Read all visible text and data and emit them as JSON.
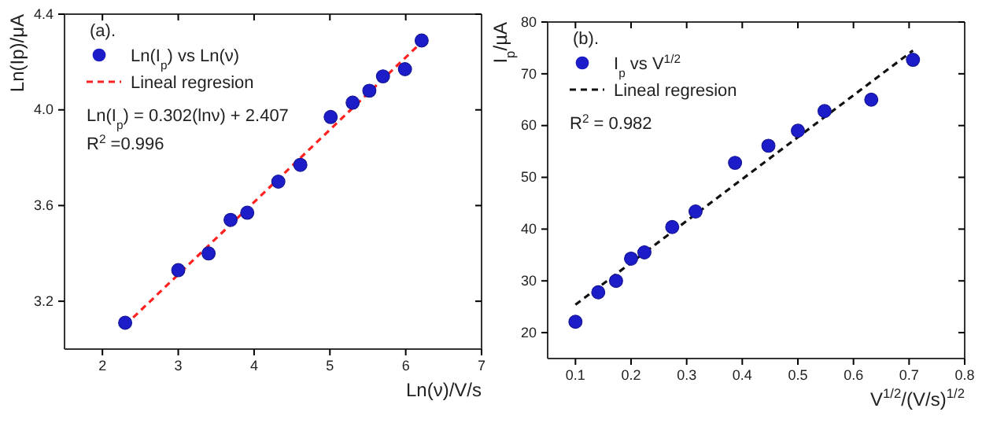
{
  "chart_data": [
    {
      "type": "scatter",
      "xlabel": "Ln(ν)/V/s",
      "ylabel": "Ln(Ip)/μA",
      "xlim": [
        1.5,
        7
      ],
      "ylim": [
        3.0,
        4.4
      ],
      "xticks": [
        2,
        3,
        4,
        5,
        6,
        7
      ],
      "yticks": [
        3.2,
        3.6,
        {
          "value": 4,
          "label": "4.0"
        },
        4.4
      ],
      "legend": "top left",
      "annotations": [
        "(a).",
        "Ln(I$_{p}$) = 0.302(lnν) + 2.407",
        "R$^{2}$ =0.996"
      ],
      "series": [
        {
          "name": "Ln(I$_{p}$) vs Ln(ν)",
          "marker": "circle",
          "color": "#1c1cc8",
          "x": [
            2.3,
            3.0,
            3.4,
            3.69,
            3.91,
            4.32,
            4.61,
            5.01,
            5.3,
            5.52,
            5.7,
            5.99,
            6.21
          ],
          "values": [
            3.11,
            3.33,
            3.4,
            3.54,
            3.57,
            3.7,
            3.77,
            3.97,
            4.03,
            4.08,
            4.14,
            4.17,
            4.29
          ]
        },
        {
          "name": "Lineal regresion",
          "type": "line",
          "marker": "none",
          "line_style": "dashed",
          "color": "#ff2020",
          "x": [
            2.3,
            6.2
          ],
          "values": [
            3.1,
            4.28
          ]
        }
      ]
    },
    {
      "type": "scatter",
      "xlabel": "V$^{1/2}$/(V/s)$^{1/2}$",
      "ylabel": "I$_{p}$/µA",
      "xlim": [
        0.05,
        0.8
      ],
      "ylim": [
        15,
        80
      ],
      "xticks": [
        0.1,
        0.2,
        0.3,
        0.4,
        0.5,
        0.6,
        0.7,
        0.8
      ],
      "yticks": [
        20,
        30,
        40,
        50,
        60,
        70,
        80
      ],
      "legend": "top left",
      "annotations": [
        "(b).",
        "R$^{2}$ = 0.982"
      ],
      "series": [
        {
          "name": "I$_{p}$ vs V$^{1/2}$",
          "marker": "circle",
          "color": "#1c1cc8",
          "x": [
            0.1,
            0.141,
            0.173,
            0.2,
            0.224,
            0.274,
            0.316,
            0.387,
            0.447,
            0.5,
            0.548,
            0.632,
            0.707
          ],
          "values": [
            22.1,
            27.8,
            30.0,
            34.3,
            35.5,
            40.4,
            43.4,
            52.8,
            56.1,
            59.0,
            62.8,
            65.0,
            72.7
          ]
        },
        {
          "name": "Lineal regresion",
          "type": "line",
          "marker": "none",
          "line_style": "dashed",
          "color": "#111111",
          "x": [
            0.1,
            0.707
          ],
          "values": [
            25.4,
            74.5
          ]
        }
      ]
    }
  ]
}
